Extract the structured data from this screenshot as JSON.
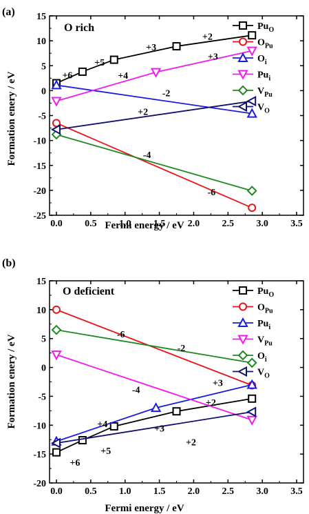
{
  "chart_data": [
    {
      "type": "line",
      "panel_label": "(a)",
      "title": "O rich",
      "xlabel": "Fermi energy / eV",
      "ylabel": "Formation enery / eV",
      "xlim": [
        -0.1,
        3.6
      ],
      "ylim": [
        -25,
        15
      ],
      "xticks": [
        "0.0",
        "0.5",
        "1.0",
        "1.5",
        "2.0",
        "2.5",
        "3.0",
        "3.5"
      ],
      "yticks": [
        "15",
        "10",
        "5",
        "0",
        "-5",
        "-10",
        "-15",
        "-20",
        "-25"
      ],
      "grid": false,
      "legend_position": "right",
      "series": [
        {
          "name": "Pu",
          "sub": "O",
          "color": "#000000",
          "marker": "square",
          "x": [
            0.0,
            0.38,
            0.84,
            1.75,
            2.85
          ],
          "y": [
            1.5,
            3.8,
            6.2,
            8.9,
            11.1
          ]
        },
        {
          "name": "O",
          "sub": "Pu",
          "color": "#e8141a",
          "marker": "circle",
          "x": [
            0.0,
            2.85
          ],
          "y": [
            -6.5,
            -23.5
          ]
        },
        {
          "name": "O",
          "sub": "i",
          "color": "#1a1ae6",
          "marker": "triangle-up",
          "x": [
            0.0,
            2.85
          ],
          "y": [
            1.1,
            -4.6
          ]
        },
        {
          "name": "Pu",
          "sub": "i",
          "color": "#ee1aee",
          "marker": "triangle-down",
          "x": [
            0.0,
            1.45,
            2.85
          ],
          "y": [
            -2.1,
            3.7,
            8.0
          ]
        },
        {
          "name": "V",
          "sub": "Pu",
          "color": "#1e8a1e",
          "marker": "diamond",
          "x": [
            0.0,
            2.85
          ],
          "y": [
            -8.8,
            -20.1
          ]
        },
        {
          "name": "V",
          "sub": "O",
          "color": "#10106e",
          "marker": "triangle-left",
          "x": [
            0.0,
            2.85
          ],
          "y": [
            -7.8,
            -2.1
          ]
        }
      ],
      "annotations": [
        {
          "text": "+6",
          "x": 0.16,
          "y": 3.2
        },
        {
          "text": "+5",
          "x": 0.63,
          "y": 5.7
        },
        {
          "text": "+4",
          "x": 0.97,
          "y": 3.1
        },
        {
          "text": "+3",
          "x": 1.38,
          "y": 8.8
        },
        {
          "text": "+2",
          "x": 2.2,
          "y": 10.9
        },
        {
          "text": "+3",
          "x": 2.28,
          "y": 6.9
        },
        {
          "text": "-2",
          "x": 1.6,
          "y": -0.4
        },
        {
          "text": "+2",
          "x": 1.26,
          "y": -4.2
        },
        {
          "text": "-4",
          "x": 1.32,
          "y": -12.8
        },
        {
          "text": "-6",
          "x": 2.26,
          "y": -20.3
        }
      ]
    },
    {
      "type": "line",
      "panel_label": "(b)",
      "title": "O deficient",
      "xlabel": "Fermi energy / eV",
      "ylabel": "Formation enery / eV",
      "xlim": [
        -0.1,
        3.6
      ],
      "ylim": [
        -20,
        15
      ],
      "xticks": [
        "0.0",
        "0.5",
        "1.0",
        "1.5",
        "2.0",
        "2.5",
        "3.0",
        "3.5"
      ],
      "yticks": [
        "15",
        "10",
        "5",
        "0",
        "-5",
        "-10",
        "-15",
        "-20"
      ],
      "grid": false,
      "legend_position": "right",
      "series": [
        {
          "name": "Pu",
          "sub": "O",
          "color": "#000000",
          "marker": "square",
          "x": [
            0.0,
            0.38,
            0.84,
            1.75,
            2.85
          ],
          "y": [
            -14.7,
            -12.6,
            -10.2,
            -7.6,
            -5.4
          ]
        },
        {
          "name": "O",
          "sub": "Pu",
          "color": "#e8141a",
          "marker": "circle",
          "x": [
            0.0,
            2.85
          ],
          "y": [
            10.0,
            -3.1
          ]
        },
        {
          "name": "Pu",
          "sub": "i",
          "color": "#1a1ae6",
          "marker": "triangle-up",
          "x": [
            0.0,
            1.45,
            2.85
          ],
          "y": [
            -12.8,
            -7.0,
            -3.0
          ]
        },
        {
          "name": "V",
          "sub": "Pu",
          "color": "#ee1aee",
          "marker": "triangle-down",
          "x": [
            0.0,
            2.85
          ],
          "y": [
            2.2,
            -9.1
          ]
        },
        {
          "name": "O",
          "sub": "i",
          "color": "#1e8a1e",
          "marker": "diamond",
          "x": [
            0.0,
            2.85
          ],
          "y": [
            6.5,
            0.8
          ]
        },
        {
          "name": "V",
          "sub": "O",
          "color": "#10106e",
          "marker": "triangle-left",
          "x": [
            0.0,
            2.85
          ],
          "y": [
            -13.1,
            -7.7
          ]
        }
      ],
      "annotations": [
        {
          "text": "-6",
          "x": 0.94,
          "y": 5.8
        },
        {
          "text": "-2",
          "x": 1.82,
          "y": 3.4
        },
        {
          "text": "-4",
          "x": 1.16,
          "y": -3.8
        },
        {
          "text": "+3",
          "x": 2.35,
          "y": -2.6
        },
        {
          "text": "+2",
          "x": 2.25,
          "y": -6.0
        },
        {
          "text": "+4",
          "x": 0.67,
          "y": -9.7
        },
        {
          "text": "+3",
          "x": 1.5,
          "y": -10.5
        },
        {
          "text": "+5",
          "x": 0.72,
          "y": -14.4
        },
        {
          "text": "+2",
          "x": 1.96,
          "y": -12.9
        },
        {
          "text": "+6",
          "x": 0.27,
          "y": -16.4
        }
      ]
    }
  ]
}
